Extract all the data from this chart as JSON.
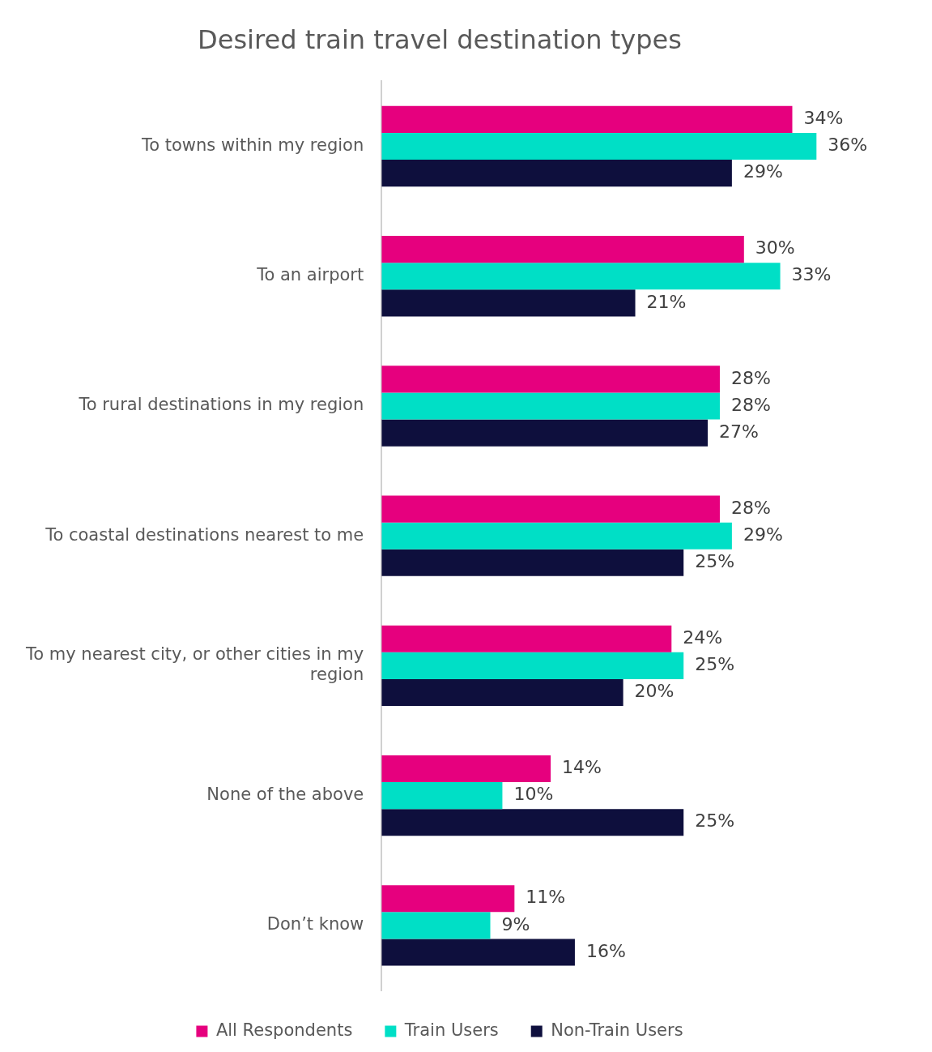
{
  "chart_data": {
    "type": "bar",
    "orientation": "horizontal",
    "title": "Desired train travel destination types",
    "categories": [
      "To towns within my region",
      "To an airport",
      "To rural destinations in my region",
      "To coastal destinations nearest to me",
      "To my nearest city, or other cities in my region",
      "None of the above",
      "Don’t know"
    ],
    "series": [
      {
        "name": "All Respondents",
        "color": "#e6007e",
        "values": [
          34,
          30,
          28,
          28,
          24,
          14,
          11
        ],
        "value_labels": [
          "34%",
          "30%",
          "28%",
          "28%",
          "24%",
          "14%",
          "11%"
        ]
      },
      {
        "name": "Train Users",
        "color": "#00dfc6",
        "values": [
          36,
          33,
          28,
          29,
          25,
          10,
          9
        ],
        "value_labels": [
          "36%",
          "33%",
          "28%",
          "29%",
          "25%",
          "10%",
          "9%"
        ]
      },
      {
        "name": "Non-Train Users",
        "color": "#0e0f3d",
        "values": [
          29,
          21,
          27,
          25,
          20,
          25,
          16
        ],
        "value_labels": [
          "29%",
          "21%",
          "27%",
          "25%",
          "20%",
          "25%",
          "16%"
        ]
      }
    ],
    "grid": false,
    "legend": "bottom",
    "tick_labels": "y"
  }
}
